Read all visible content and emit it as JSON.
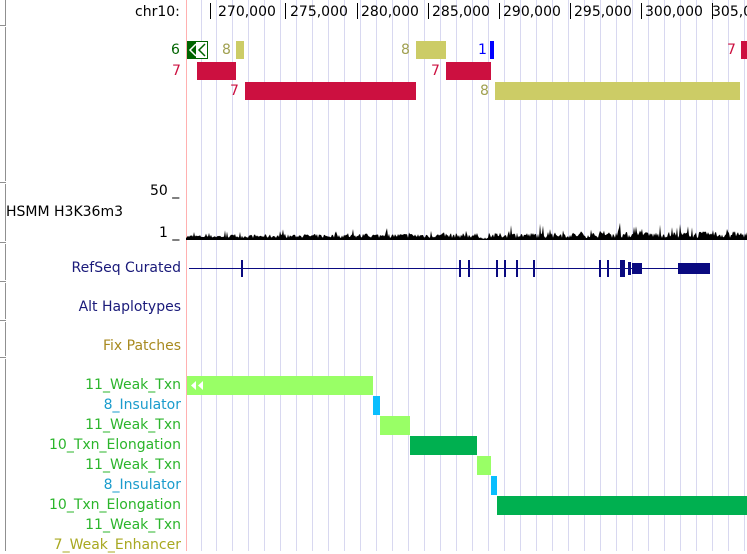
{
  "ruler": {
    "chrom_label": "chr10:",
    "ticks": [
      "270,000",
      "275,000",
      "280,000",
      "285,000",
      "290,000",
      "295,000",
      "300,000",
      "305,0"
    ]
  },
  "track_top": {
    "row1": [
      "6",
      "8",
      "8",
      "1",
      "7"
    ],
    "row2": [
      "7",
      "7"
    ],
    "row3": [
      "7",
      "8"
    ]
  },
  "signal_track": {
    "name": "HSMM H3K36m3",
    "max_label": "50 _",
    "min_label": "1 _"
  },
  "refseq": {
    "name": "RefSeq Curated"
  },
  "alt_haplotypes": {
    "name": "Alt Haplotypes"
  },
  "fix_patches": {
    "name": "Fix Patches"
  },
  "chromhmm": {
    "states": [
      "11_Weak_Txn",
      "8_Insulator",
      "11_Weak_Txn",
      "10_Txn_Elongation",
      "11_Weak_Txn",
      "8_Insulator",
      "10_Txn_Elongation",
      "11_Weak_Txn",
      "7_Weak_Enhancer"
    ]
  },
  "colors": {
    "red_state": "#cc1040",
    "olive_state": "#cccc66",
    "dark_green": "#006400",
    "blue": "#0000ff",
    "weak_txn": "#99ff66",
    "insulator": "#0abefe",
    "txn_elongation": "#00b050",
    "gene_navy": "#0a0a80",
    "label_navy": "#1a1a7a",
    "label_olive": "#a88a20",
    "label_green": "#2bb52b"
  }
}
